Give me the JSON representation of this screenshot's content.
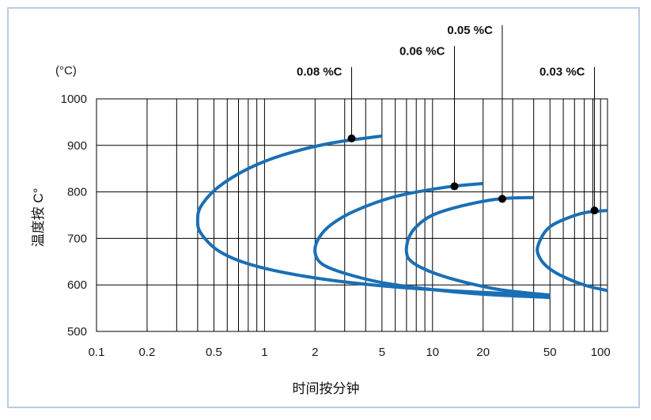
{
  "chart_data": {
    "type": "line",
    "title": "",
    "xlabel": "时间按分钟",
    "ylabel": "温度按 C°",
    "y_unit": "(°C)",
    "xscale": "log",
    "xlim": [
      0.1,
      110
    ],
    "ylim": [
      500,
      1000
    ],
    "x_ticks": [
      0.1,
      0.2,
      0.5,
      1,
      2,
      5,
      10,
      20,
      50,
      100
    ],
    "x_tick_labels": [
      "0.1",
      "0.2",
      "0.5",
      "1",
      "2",
      "5",
      "10",
      "20",
      "50",
      "100"
    ],
    "y_ticks": [
      500,
      600,
      700,
      800,
      900,
      1000
    ],
    "y_tick_labels": [
      "500",
      "600",
      "700",
      "800",
      "900",
      "1000"
    ],
    "grid": true,
    "line_color": "#1a6fb5",
    "series": [
      {
        "name": "0.08 %C",
        "x": [
          5,
          2.5,
          1.3,
          0.8,
          0.53,
          0.42,
          0.4,
          0.42,
          0.55,
          0.9,
          2,
          5,
          15,
          50
        ],
        "y": [
          920,
          905,
          880,
          850,
          810,
          770,
          740,
          710,
          670,
          640,
          615,
          598,
          586,
          578
        ],
        "marker": {
          "x": 3.3,
          "y": 915
        }
      },
      {
        "name": "0.06 %C",
        "x": [
          20,
          12,
          6,
          3.5,
          2.5,
          2.1,
          2.0,
          2.2,
          3,
          5,
          10,
          20,
          50
        ],
        "y": [
          818,
          810,
          790,
          760,
          730,
          700,
          670,
          645,
          625,
          605,
          590,
          580,
          573
        ]
      },
      {
        "name": "0.05 %C",
        "x": [
          40,
          25,
          15,
          10,
          8,
          7.2,
          7.0,
          7.5,
          9.5,
          14,
          25,
          50
        ],
        "y": [
          788,
          785,
          770,
          750,
          725,
          700,
          670,
          650,
          630,
          610,
          590,
          578
        ]
      },
      {
        "name": "0.03 %C",
        "x": [
          110,
          80,
          60,
          50,
          45,
          42,
          45,
          52,
          65,
          85,
          110
        ],
        "y": [
          760,
          755,
          740,
          725,
          705,
          675,
          650,
          630,
          612,
          597,
          588
        ]
      }
    ],
    "markers": [
      {
        "label": "0.08 %C",
        "x": 3.3,
        "y": 915,
        "label_y": 1060
      },
      {
        "label": "0.06 %C",
        "x": 13.5,
        "y": 812,
        "label_y": 1105
      },
      {
        "label": "0.05 %C",
        "x": 26,
        "y": 785,
        "label_y": 1150
      },
      {
        "label": "0.03 %C",
        "x": 92,
        "y": 760,
        "label_y": 1060
      }
    ]
  }
}
